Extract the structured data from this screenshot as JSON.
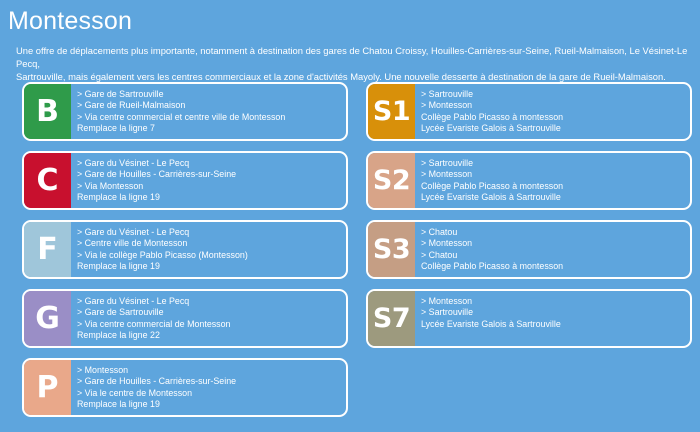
{
  "page": {
    "title": "Montesson",
    "intro_line1": "Une offre de déplacements plus importante, notamment à destination des gares de Chatou Croissy, Houilles-Carrières-sur-Seine, Rueil-Malmaison, Le Vésinet-Le Pecq,",
    "intro_line2": "Sartrouville, mais également vers les centres commerciaux et la zone d'activités Mayoly. Une nouvelle desserte à destination de la gare de Rueil-Malmaison."
  },
  "left_cards": [
    {
      "code": "B",
      "color": "#2f9b4a",
      "lines": [
        "> Gare de Sartrouville",
        "> Gare de Rueil-Malmaison",
        "> Via centre commercial et centre ville de Montesson",
        "Remplace la ligne 7"
      ]
    },
    {
      "code": "C",
      "color": "#c8102e",
      "lines": [
        "> Gare du Vésinet - Le Pecq",
        "> Gare de Houilles - Carrières-sur-Seine",
        "> Via Montesson",
        "Remplace la ligne 19"
      ]
    },
    {
      "code": "F",
      "color": "#9fc6da",
      "lines": [
        "> Gare du Vésinet - Le Pecq",
        "> Centre ville de Montesson",
        "> Via le collège Pablo Picasso (Montesson)",
        "Remplace la ligne 19"
      ]
    },
    {
      "code": "G",
      "color": "#9a8ec6",
      "lines": [
        "> Gare du Vésinet - Le Pecq",
        "> Gare de Sartrouville",
        "> Via centre commercial de Montesson",
        "Remplace la ligne 22"
      ]
    },
    {
      "code": "P",
      "color": "#e9a88a",
      "lines": [
        "> Montesson",
        "> Gare de Houilles - Carrières-sur-Seine",
        "> Via le centre de Montesson",
        "Remplace la ligne 19"
      ]
    }
  ],
  "right_cards": [
    {
      "code": "S1",
      "color": "#d8900a",
      "lines": [
        "> Sartrouville",
        "> Montesson",
        "Collège Pablo Picasso à montesson",
        "Lycée Evariste Galois à Sartrouville"
      ]
    },
    {
      "code": "S2",
      "color": "#d8a488",
      "lines": [
        "> Sartrouville",
        "> Montesson",
        "Collège Pablo Picasso à montesson",
        "Lycée Evariste Galois à Sartrouville"
      ]
    },
    {
      "code": "S3",
      "color": "#c59e84",
      "lines": [
        "> Chatou",
        "> Montesson",
        "> Chatou",
        "Collège Pablo Picasso à montesson"
      ]
    },
    {
      "code": "S7",
      "color": "#9d9a7e",
      "lines": [
        "> Montesson",
        "> Sartrouville",
        "Lycée Evariste Galois à Sartrouville"
      ]
    }
  ]
}
